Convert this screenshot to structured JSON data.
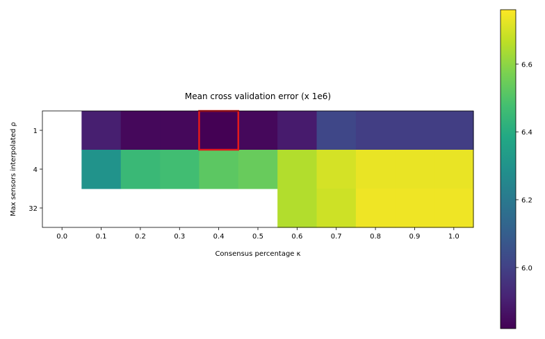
{
  "chart_data": {
    "type": "heatmap",
    "title": "Mean cross validation error (x 1e6)",
    "xlabel": "Consensus percentage κ",
    "ylabel": "Max sensors interpolated ρ",
    "x_categories": [
      "0.0",
      "0.1",
      "0.2",
      "0.3",
      "0.4",
      "0.5",
      "0.6",
      "0.7",
      "0.8",
      "0.9",
      "1.0"
    ],
    "y_categories": [
      "1",
      "4",
      "32"
    ],
    "values": [
      [
        null,
        5.9,
        5.84,
        5.84,
        5.82,
        5.84,
        5.89,
        6.02,
        5.99,
        5.99,
        5.99
      ],
      [
        null,
        6.3,
        6.45,
        6.47,
        6.52,
        6.54,
        6.65,
        6.7,
        6.73,
        6.73,
        6.73
      ],
      [
        null,
        null,
        null,
        null,
        null,
        null,
        6.65,
        6.69,
        6.74,
        6.74,
        6.74
      ]
    ],
    "highlight_cell": {
      "x": "0.4",
      "y": "1",
      "color": "#e41a1c"
    },
    "colormap": "viridis",
    "color_range": [
      5.82,
      6.76
    ],
    "colorbar_ticks": [
      "6.0",
      "6.2",
      "6.4",
      "6.6"
    ],
    "colorbar_tick_values": [
      6.0,
      6.2,
      6.4,
      6.6
    ]
  }
}
